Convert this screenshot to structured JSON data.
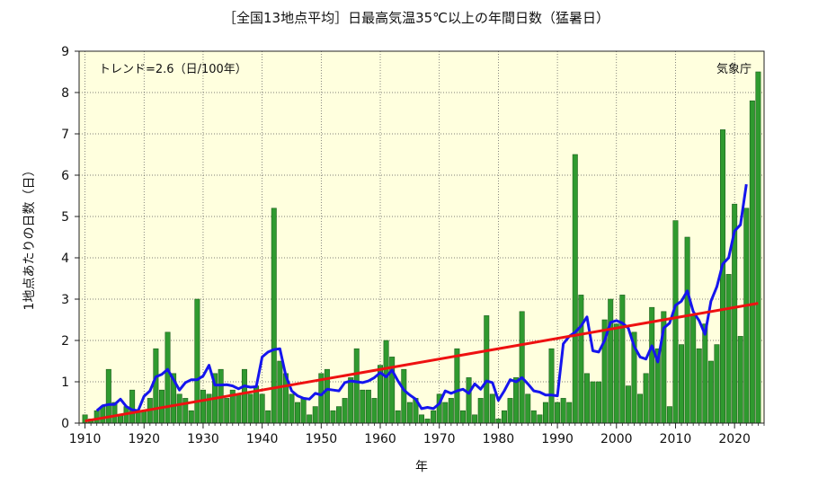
{
  "chart_data": {
    "type": "bar",
    "title": "［全国13地点平均］日最高気温35℃以上の年間日数（猛暑日）",
    "xlabel": "年",
    "ylabel": "1地点あたりの日数（日）",
    "trend_label": "トレンド=2.6（日/100年）",
    "source_label": "気象庁",
    "x_ticks": [
      "1910",
      "1920",
      "1930",
      "1940",
      "1950",
      "1960",
      "1970",
      "1980",
      "1990",
      "2000",
      "2010",
      "2020"
    ],
    "y_ticks": [
      "0",
      "1",
      "2",
      "3",
      "4",
      "5",
      "6",
      "7",
      "8",
      "9"
    ],
    "xlim": [
      1909,
      2025
    ],
    "ylim": [
      0,
      9
    ],
    "grid": true,
    "colors": {
      "bar": "#2f9a2f",
      "bar_edge": "#1d5e1d",
      "moving_avg": "#1515ee",
      "trend": "#ee1111",
      "plot_bg": "#ffffde"
    },
    "years": [
      1910,
      1911,
      1912,
      1913,
      1914,
      1915,
      1916,
      1917,
      1918,
      1919,
      1920,
      1921,
      1922,
      1923,
      1924,
      1925,
      1926,
      1927,
      1928,
      1929,
      1930,
      1931,
      1932,
      1933,
      1934,
      1935,
      1936,
      1937,
      1938,
      1939,
      1940,
      1941,
      1942,
      1943,
      1944,
      1945,
      1946,
      1947,
      1948,
      1949,
      1950,
      1951,
      1952,
      1953,
      1954,
      1955,
      1956,
      1957,
      1958,
      1959,
      1960,
      1961,
      1962,
      1963,
      1964,
      1965,
      1966,
      1967,
      1968,
      1969,
      1970,
      1971,
      1972,
      1973,
      1974,
      1975,
      1976,
      1977,
      1978,
      1979,
      1980,
      1981,
      1982,
      1983,
      1984,
      1985,
      1986,
      1987,
      1988,
      1989,
      1990,
      1991,
      1992,
      1993,
      1994,
      1995,
      1996,
      1997,
      1998,
      1999,
      2000,
      2001,
      2002,
      2003,
      2004,
      2005,
      2006,
      2007,
      2008,
      2009,
      2010,
      2011,
      2012,
      2013,
      2014,
      2015,
      2016,
      2017,
      2018,
      2019,
      2020,
      2021,
      2022,
      2023,
      2024
    ],
    "values": [
      0.2,
      0.1,
      0.3,
      0.4,
      1.3,
      0.5,
      0.2,
      0.4,
      0.8,
      0.3,
      0.3,
      0.6,
      1.8,
      0.8,
      2.2,
      1.2,
      0.7,
      0.6,
      0.3,
      3.0,
      0.8,
      0.7,
      1.2,
      1.3,
      0.6,
      0.8,
      0.7,
      1.3,
      0.7,
      0.9,
      0.7,
      0.3,
      5.2,
      1.5,
      1.2,
      0.7,
      0.5,
      0.6,
      0.2,
      0.4,
      1.2,
      1.3,
      0.3,
      0.4,
      0.6,
      1.1,
      1.8,
      0.8,
      0.8,
      0.6,
      1.4,
      2.0,
      1.6,
      0.3,
      1.3,
      0.5,
      0.6,
      0.2,
      0.1,
      0.3,
      0.7,
      0.5,
      0.6,
      1.8,
      0.3,
      1.1,
      0.2,
      0.6,
      2.6,
      0.7,
      0.1,
      0.3,
      0.6,
      1.1,
      2.7,
      0.7,
      0.3,
      0.2,
      0.5,
      1.8,
      0.5,
      0.6,
      0.5,
      6.5,
      3.1,
      1.2,
      1.0,
      1.0,
      2.5,
      3.0,
      2.4,
      3.1,
      0.9,
      2.2,
      0.7,
      1.2,
      2.8,
      1.8,
      2.7,
      0.4,
      4.9,
      1.9,
      4.5,
      2.6,
      1.8,
      2.4,
      1.5,
      1.9,
      7.1,
      3.6,
      5.3,
      2.1,
      5.2,
      7.8,
      8.5
    ],
    "series": [
      {
        "x": [
          1912,
          1913,
          1914,
          1915,
          1916,
          1917,
          1918,
          1919,
          1920,
          1921,
          1922,
          1923,
          1924,
          1925,
          1926,
          1927,
          1928,
          1929,
          1930,
          1931,
          1932,
          1933,
          1934,
          1935,
          1936,
          1937,
          1938,
          1939,
          1940,
          1941,
          1942,
          1943,
          1944,
          1945,
          1946,
          1947,
          1948,
          1949,
          1950,
          1951,
          1952,
          1953,
          1954,
          1955,
          1956,
          1957,
          1958,
          1959,
          1960,
          1961,
          1962,
          1963,
          1964,
          1965,
          1966,
          1967,
          1968,
          1969,
          1970,
          1971,
          1972,
          1973,
          1974,
          1975,
          1976,
          1977,
          1978,
          1979,
          1980,
          1981,
          1982,
          1983,
          1984,
          1985,
          1986,
          1987,
          1988,
          1989,
          1990,
          1991,
          1992,
          1993,
          1994,
          1995,
          1996,
          1997,
          1998,
          1999,
          2000,
          2001,
          2002,
          2003,
          2004,
          2005,
          2006,
          2007,
          2008,
          2009,
          2010,
          2011,
          2012,
          2013,
          2014,
          2015,
          2016,
          2017,
          2018,
          2019,
          2020,
          2021,
          2022
        ],
        "values": [
          0.3,
          0.42,
          0.45,
          0.45,
          0.58,
          0.4,
          0.32,
          0.3,
          0.65,
          0.78,
          1.12,
          1.18,
          1.3,
          1.05,
          0.8,
          0.98,
          1.05,
          1.05,
          1.14,
          1.4,
          0.92,
          0.92,
          0.93,
          0.9,
          0.83,
          0.9,
          0.87,
          0.88,
          1.6,
          1.72,
          1.78,
          1.8,
          1.15,
          0.78,
          0.66,
          0.6,
          0.58,
          0.72,
          0.68,
          0.82,
          0.8,
          0.78,
          0.98,
          1.02,
          1.0,
          0.98,
          1.02,
          1.1,
          1.22,
          1.12,
          1.28,
          1.02,
          0.8,
          0.68,
          0.58,
          0.35,
          0.38,
          0.35,
          0.47,
          0.78,
          0.72,
          0.78,
          0.82,
          0.72,
          0.95,
          0.82,
          1.02,
          0.98,
          0.55,
          0.78,
          1.05,
          1.0,
          1.1,
          0.95,
          0.78,
          0.75,
          0.68,
          0.68,
          0.66,
          1.92,
          2.1,
          2.2,
          2.35,
          2.57,
          1.75,
          1.72,
          2.0,
          2.44,
          2.48,
          2.42,
          2.3,
          1.86,
          1.6,
          1.55,
          1.87,
          1.48,
          2.3,
          2.42,
          2.85,
          2.95,
          3.2,
          2.7,
          2.48,
          2.15,
          2.95,
          3.3,
          3.85,
          4.0,
          4.65,
          4.8,
          5.78
        ]
      },
      {
        "x": [
          1910,
          2024
        ],
        "values": [
          0.05,
          2.9
        ]
      }
    ]
  }
}
